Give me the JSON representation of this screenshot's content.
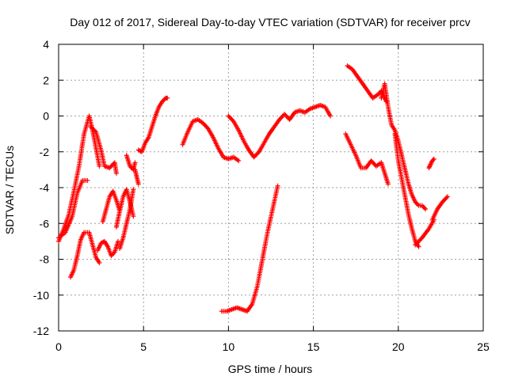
{
  "chart_data": {
    "type": "scatter",
    "title": "Day 012 of 2017, Sidereal Day-to-day VTEC variation (SDTVAR) for receiver prcv",
    "xlabel": "GPS time / hours",
    "ylabel": "SDTVAR / TECUs",
    "xlim": [
      0,
      25
    ],
    "ylim": [
      -12,
      4
    ],
    "xticks": [
      "0",
      "5",
      "10",
      "15",
      "20",
      "25"
    ],
    "yticks": [
      "-12",
      "-10",
      "-8",
      "-6",
      "-4",
      "-2",
      "0",
      "2",
      "4"
    ],
    "grid": true,
    "legend": "none",
    "marker": "plus",
    "color": "#ff0000",
    "tracks": [
      {
        "x": [
          0,
          0.3,
          0.6,
          0.9,
          1.2,
          1.5,
          1.8,
          2.0,
          2.2,
          2.4
        ],
        "y": [
          -7.0,
          -6.3,
          -5.5,
          -4.2,
          -2.8,
          -1.0,
          0.0,
          -0.8,
          -1.8,
          -2.8
        ]
      },
      {
        "x": [
          0,
          0.4,
          0.8,
          1.1,
          1.4,
          1.7
        ],
        "y": [
          -6.8,
          -6.5,
          -5.6,
          -4.3,
          -3.6,
          -3.6
        ]
      },
      {
        "x": [
          0.7,
          0.9,
          1.1,
          1.3,
          1.5,
          1.8,
          2.0,
          2.2,
          2.4
        ],
        "y": [
          -9.0,
          -8.6,
          -7.8,
          -6.9,
          -6.5,
          -6.5,
          -7.2,
          -7.9,
          -8.2
        ]
      },
      {
        "x": [
          2.3,
          2.5,
          2.7,
          2.9,
          3.1,
          3.3,
          3.5
        ],
        "y": [
          -7.5,
          -7.1,
          -7.0,
          -7.3,
          -7.8,
          -7.6,
          -7.0
        ]
      },
      {
        "x": [
          1.9,
          2.2,
          2.5,
          2.7,
          3.0,
          3.3,
          3.4
        ],
        "y": [
          -0.6,
          -0.9,
          -1.9,
          -2.8,
          -2.9,
          -2.6,
          -3.2
        ]
      },
      {
        "x": [
          2.6,
          2.8,
          3.0,
          3.2,
          3.4,
          3.6
        ],
        "y": [
          -5.9,
          -5.2,
          -4.5,
          -4.2,
          -4.7,
          -5.3
        ]
      },
      {
        "x": [
          3.4,
          3.6,
          3.8,
          4.0,
          4.2,
          4.4
        ],
        "y": [
          -6.2,
          -5.3,
          -4.5,
          -4.1,
          -4.8,
          -5.6
        ]
      },
      {
        "x": [
          3.6,
          3.8,
          4.0,
          4.2,
          4.4
        ],
        "y": [
          -7.4,
          -6.8,
          -6.0,
          -5.2,
          -4.1
        ]
      },
      {
        "x": [
          4.0,
          4.2,
          4.4,
          4.5
        ],
        "y": [
          -2.2,
          -2.8,
          -3.0,
          -2.6
        ]
      },
      {
        "x": [
          4.5,
          4.6,
          4.7
        ],
        "y": [
          -3.0,
          -3.4,
          -3.8
        ]
      },
      {
        "x": [
          4.7,
          4.9,
          5.1,
          5.3,
          5.5,
          5.7,
          5.9,
          6.1,
          6.3,
          6.4
        ],
        "y": [
          -1.9,
          -2.0,
          -1.5,
          -1.2,
          -0.6,
          0.0,
          0.5,
          0.8,
          1.0,
          1.0
        ]
      },
      {
        "x": [
          7.3,
          7.6,
          7.9,
          8.2,
          8.5,
          8.8,
          9.1,
          9.4,
          9.7,
          10.0,
          10.3,
          10.6
        ],
        "y": [
          -1.6,
          -0.9,
          -0.3,
          -0.2,
          -0.4,
          -0.7,
          -1.2,
          -1.8,
          -2.3,
          -2.4,
          -2.3,
          -2.5
        ]
      },
      {
        "x": [
          10.0,
          10.3,
          10.6,
          10.9,
          11.2,
          11.5,
          11.8,
          12.1,
          12.4,
          12.7,
          13.0,
          13.3,
          13.6,
          13.9,
          14.2,
          14.5,
          14.8,
          15.1,
          15.4,
          15.7,
          16.0
        ],
        "y": [
          0.0,
          -0.3,
          -0.8,
          -1.4,
          -1.9,
          -2.3,
          -2.0,
          -1.5,
          -1.0,
          -0.6,
          -0.2,
          0.1,
          -0.2,
          0.2,
          0.3,
          0.2,
          0.4,
          0.5,
          0.6,
          0.5,
          0.0
        ]
      },
      {
        "x": [
          9.6,
          9.9,
          10.2,
          10.5,
          10.8,
          11.1,
          11.4,
          11.7,
          12.0,
          12.3,
          12.6,
          12.9
        ],
        "y": [
          -10.9,
          -10.9,
          -10.8,
          -10.7,
          -10.8,
          -10.9,
          -10.5,
          -9.5,
          -8.0,
          -6.5,
          -5.2,
          -3.9
        ]
      },
      {
        "x": [
          16.9,
          17.2,
          17.5,
          17.8,
          18.1,
          18.4,
          18.7,
          19.0,
          19.2,
          19.4
        ],
        "y": [
          -1.0,
          -1.6,
          -2.2,
          -2.9,
          -2.9,
          -2.5,
          -2.8,
          -2.6,
          -3.2,
          -3.8
        ]
      },
      {
        "x": [
          17.0,
          17.3,
          17.6,
          17.9,
          18.2,
          18.5,
          18.8,
          19.0,
          19.2,
          19.3
        ],
        "y": [
          2.8,
          2.6,
          2.2,
          1.8,
          1.4,
          1.0,
          1.2,
          1.4,
          1.0,
          0.8
        ]
      },
      {
        "x": [
          19.0,
          19.2,
          19.4,
          19.6,
          19.8,
          20.0,
          20.2,
          20.4,
          20.6,
          20.8,
          21.0,
          21.2,
          21.4,
          21.6
        ],
        "y": [
          1.0,
          1.8,
          0.5,
          -0.5,
          -0.8,
          -1.4,
          -2.2,
          -3.0,
          -3.8,
          -4.4,
          -4.8,
          -5.0,
          -5.0,
          -5.2
        ]
      },
      {
        "x": [
          19.8,
          20.0,
          20.2,
          20.4,
          20.6,
          20.8,
          21.0,
          21.2
        ],
        "y": [
          -1.0,
          -2.5,
          -3.5,
          -4.5,
          -5.5,
          -6.3,
          -7.0,
          -7.3
        ]
      },
      {
        "x": [
          21.0,
          21.4,
          21.8,
          22.1
        ],
        "y": [
          -7.2,
          -6.8,
          -6.3,
          -5.8
        ]
      },
      {
        "x": [
          21.8,
          21.9,
          22.0,
          22.1
        ],
        "y": [
          -2.9,
          -2.7,
          -2.5,
          -2.4
        ]
      },
      {
        "x": [
          22.0,
          22.3,
          22.6,
          22.9
        ],
        "y": [
          -5.8,
          -5.2,
          -4.8,
          -4.5
        ]
      }
    ]
  }
}
